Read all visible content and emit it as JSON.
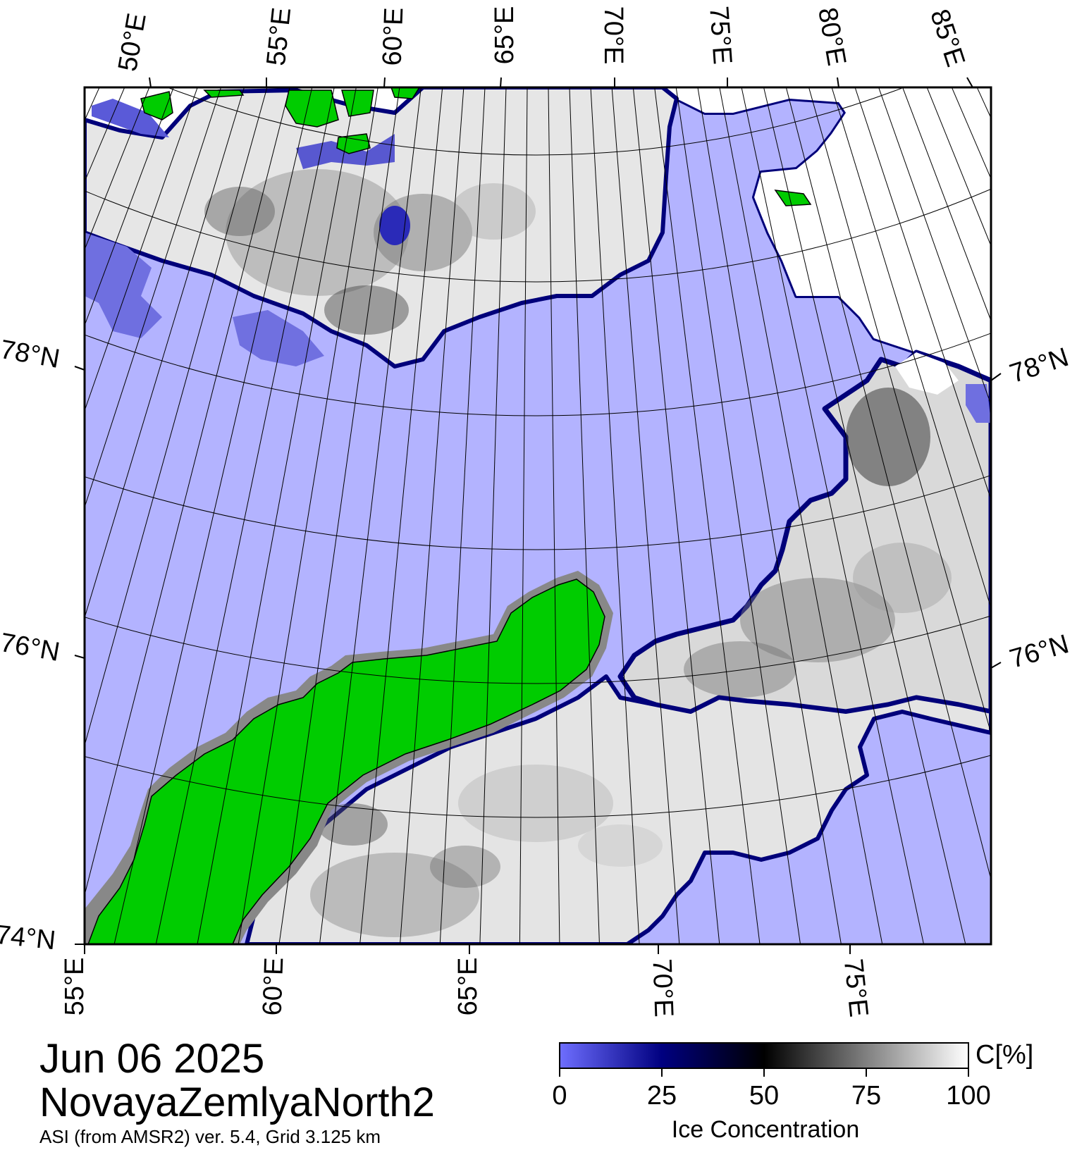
{
  "header": {
    "date": "Jun 06 2025",
    "region": "NovayaZemlyaNorth2",
    "source": "ASI (from AMSR2) ver. 5.4,  Grid 3.125 km"
  },
  "map": {
    "top_lon_labels": [
      "50°E",
      "55°E",
      "60°E",
      "65°E",
      "70°E",
      "75°E",
      "80°E",
      "85°E"
    ],
    "bottom_lon_labels": [
      "55°E",
      "60°E",
      "65°E",
      "70°E",
      "75°E"
    ],
    "left_lat_labels": [
      "78°N",
      "76°N",
      "74°N"
    ],
    "right_lat_labels": [
      "78°N",
      "76°N"
    ],
    "colors": {
      "open_water": "#b3b3ff",
      "land": "#00cc00",
      "coast_fringe": "#888888",
      "ice_edge": "#00007a"
    }
  },
  "colorbar": {
    "unit": "C[%]",
    "title": "Ice Concentration",
    "ticks": [
      "0",
      "25",
      "50",
      "75",
      "100"
    ],
    "stops": [
      "#6e6eff",
      "#000080",
      "#000000",
      "#808080",
      "#ffffff"
    ]
  }
}
